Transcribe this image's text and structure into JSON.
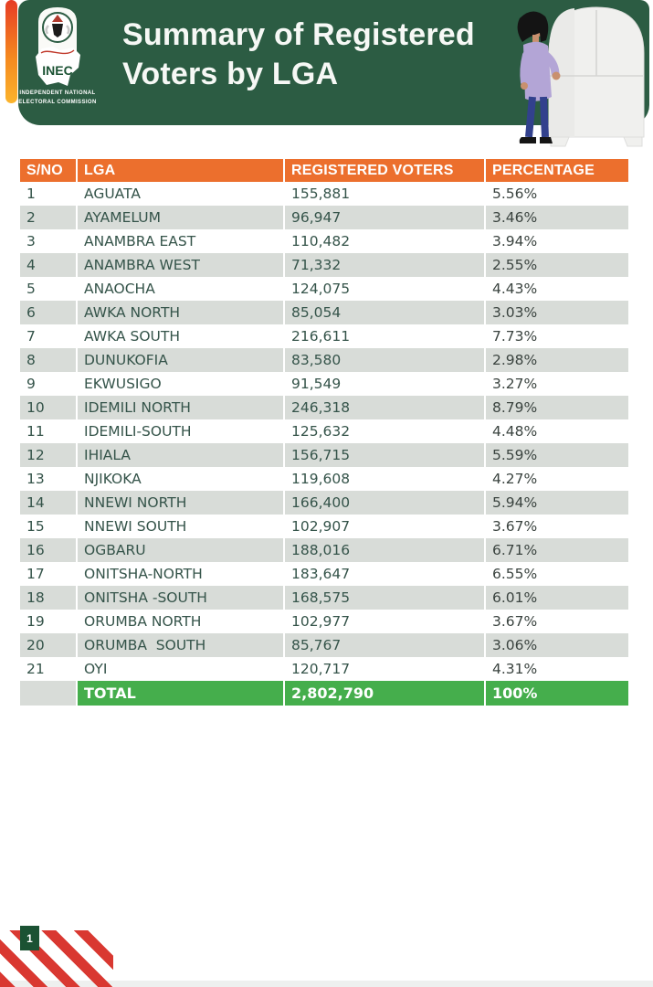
{
  "header": {
    "title_line1": "Summary of Registered",
    "title_line2": "Voters by LGA",
    "bg_color": "#2C5C43",
    "accent_gradient": [
      "#E63B25",
      "#F5881F",
      "#FBB42C"
    ],
    "logo": {
      "acronym": "INEC",
      "caption_line1": "INDEPENDENT NATIONAL",
      "caption_line2": "ELECTORAL COMMISSION"
    }
  },
  "table": {
    "header_bg": "#EC6F2D",
    "alt_row_bg": "#D8DCD8",
    "text_color": "#35544A",
    "total_bg": "#45AE4C",
    "columns": [
      "S/NO",
      "LGA",
      "REGISTERED VOTERS",
      "PERCENTAGE"
    ],
    "rows": [
      {
        "sno": "1",
        "lga": "AGUATA",
        "voters": "155,881",
        "pct": "5.56%"
      },
      {
        "sno": "2",
        "lga": "AYAMELUM",
        "voters": "96,947",
        "pct": "3.46%"
      },
      {
        "sno": "3",
        "lga": "ANAMBRA EAST",
        "voters": "110,482",
        "pct": "3.94%"
      },
      {
        "sno": "4",
        "lga": "ANAMBRA WEST",
        "voters": "71,332",
        "pct": "2.55%"
      },
      {
        "sno": "5",
        "lga": "ANAOCHA",
        "voters": "124,075",
        "pct": "4.43%"
      },
      {
        "sno": "6",
        "lga": "AWKA NORTH",
        "voters": "85,054",
        "pct": "3.03%"
      },
      {
        "sno": "7",
        "lga": "AWKA SOUTH",
        "voters": "216,611",
        "pct": "7.73%"
      },
      {
        "sno": "8",
        "lga": "DUNUKOFIA",
        "voters": "83,580",
        "pct": "2.98%"
      },
      {
        "sno": "9",
        "lga": "EKWUSIGO",
        "voters": "91,549",
        "pct": "3.27%"
      },
      {
        "sno": "10",
        "lga": "IDEMILI NORTH",
        "voters": "246,318",
        "pct": "8.79%"
      },
      {
        "sno": "11",
        "lga": "IDEMILI-SOUTH",
        "voters": "125,632",
        "pct": "4.48%"
      },
      {
        "sno": "12",
        "lga": "IHIALA",
        "voters": "156,715",
        "pct": "5.59%"
      },
      {
        "sno": "13",
        "lga": "NJIKOKA",
        "voters": "119,608",
        "pct": "4.27%"
      },
      {
        "sno": "14",
        "lga": "NNEWI NORTH",
        "voters": "166,400",
        "pct": "5.94%"
      },
      {
        "sno": "15",
        "lga": "NNEWI SOUTH",
        "voters": "102,907",
        "pct": "3.67%"
      },
      {
        "sno": "16",
        "lga": "OGBARU",
        "voters": "188,016",
        "pct": "6.71%"
      },
      {
        "sno": "17",
        "lga": "ONITSHA-NORTH",
        "voters": "183,647",
        "pct": "6.55%"
      },
      {
        "sno": "18",
        "lga": "ONITSHA -SOUTH",
        "voters": "168,575",
        "pct": "6.01%"
      },
      {
        "sno": "19",
        "lga": "ORUMBA NORTH",
        "voters": "102,977",
        "pct": "3.67%"
      },
      {
        "sno": "20",
        "lga": "ORUMBA  SOUTH",
        "voters": "85,767",
        "pct": "3.06%"
      },
      {
        "sno": "21",
        "lga": "OYI",
        "voters": "120,717",
        "pct": "4.31%"
      }
    ],
    "total": {
      "label": "TOTAL",
      "voters": "2,802,790",
      "pct": "100%"
    }
  },
  "footer": {
    "page_number": "1",
    "stripe_color": "#D93831",
    "page_box_color": "#1B5233"
  }
}
